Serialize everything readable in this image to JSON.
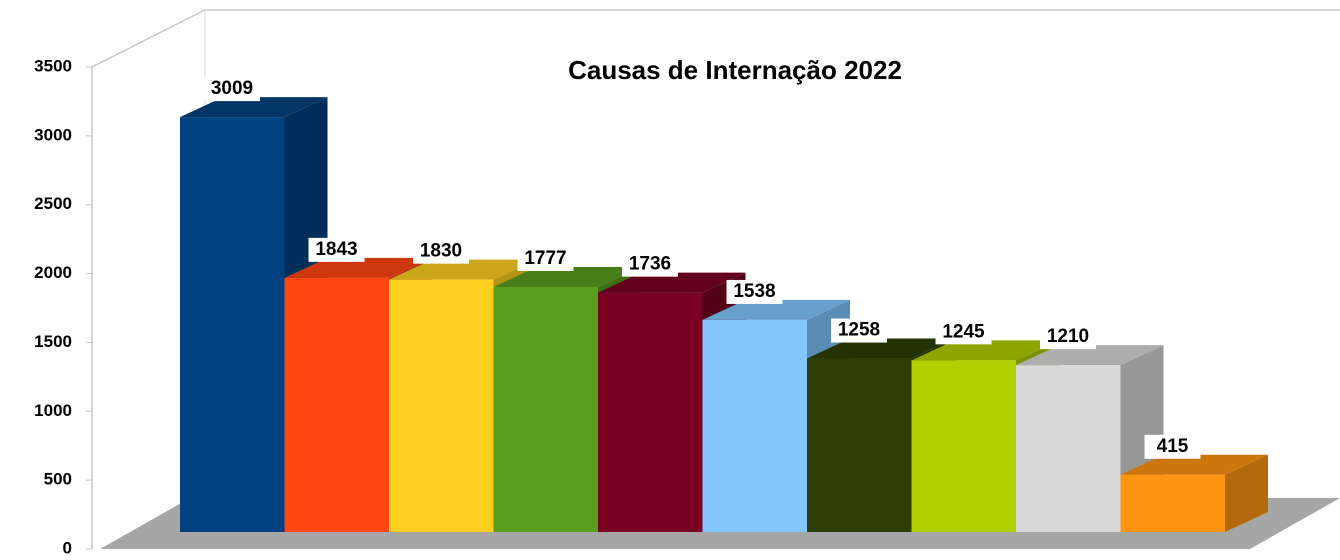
{
  "chart_data": {
    "type": "bar3d",
    "title": "Causas de Internação 2022",
    "values": [
      3009,
      1843,
      1830,
      1777,
      1736,
      1538,
      1258,
      1245,
      1210,
      415
    ],
    "colors": [
      "#00427f",
      "#ff4512",
      "#ffd020",
      "#5a9e1e",
      "#7a0024",
      "#82c8ff",
      "#2d3f05",
      "#b0d000",
      "#d8d8d8",
      "#ff9510"
    ],
    "ylim": [
      0,
      3500
    ],
    "yticks": [
      0,
      500,
      1000,
      1500,
      2000,
      2500,
      3000,
      3500
    ]
  }
}
